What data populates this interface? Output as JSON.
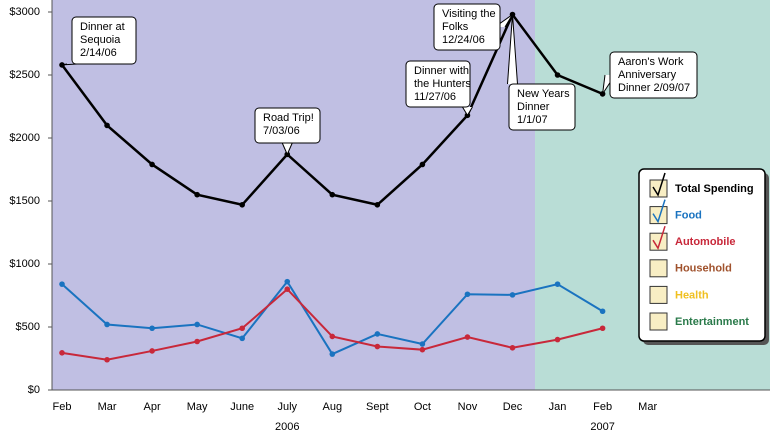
{
  "chart_data": {
    "type": "line",
    "categories": [
      "Feb",
      "Mar",
      "Apr",
      "May",
      "June",
      "July",
      "Aug",
      "Sept",
      "Oct",
      "Nov",
      "Dec",
      "Jan",
      "Feb",
      "Mar"
    ],
    "x_groups": [
      {
        "label": "2006",
        "start": 0,
        "end": 10,
        "color": "#c0bfe3"
      },
      {
        "label": "2007",
        "start": 11,
        "end": 13,
        "color": "#b9ddd6"
      }
    ],
    "ylim": [
      0,
      3000
    ],
    "yticks": [
      {
        "value": 0,
        "label": "$0"
      },
      {
        "value": 500,
        "label": "$500"
      },
      {
        "value": 1000,
        "label": "$1000"
      },
      {
        "value": 1500,
        "label": "$1500"
      },
      {
        "value": 2000,
        "label": "$2000"
      },
      {
        "value": 2500,
        "label": "$2500"
      },
      {
        "value": 3000,
        "label": "$3000"
      }
    ],
    "series": [
      {
        "name": "Total Spending",
        "color": "#000000",
        "checked": true,
        "values": [
          2580,
          2100,
          1790,
          1550,
          1470,
          1870,
          1550,
          1470,
          1790,
          2180,
          2980,
          2500,
          2350,
          null
        ]
      },
      {
        "name": "Food",
        "color": "#1a73c0",
        "checked": true,
        "values": [
          840,
          520,
          490,
          520,
          410,
          860,
          285,
          445,
          365,
          760,
          755,
          840,
          625,
          null
        ]
      },
      {
        "name": "Automobile",
        "color": "#c8283a",
        "checked": true,
        "values": [
          295,
          240,
          310,
          385,
          490,
          800,
          425,
          345,
          320,
          420,
          335,
          400,
          490,
          null
        ]
      },
      {
        "name": "Household",
        "color": "#a0522d",
        "checked": false,
        "values": [
          null,
          null,
          null,
          null,
          null,
          null,
          null,
          null,
          null,
          null,
          null,
          null,
          null,
          null
        ]
      },
      {
        "name": "Health",
        "color": "#f0c020",
        "checked": false,
        "values": [
          null,
          null,
          null,
          null,
          null,
          null,
          null,
          null,
          null,
          null,
          null,
          null,
          null,
          null
        ]
      },
      {
        "name": "Entertainment",
        "color": "#2a7a4a",
        "checked": false,
        "values": [
          null,
          null,
          null,
          null,
          null,
          null,
          null,
          null,
          null,
          null,
          null,
          null,
          null,
          null
        ]
      }
    ],
    "annotations": [
      [
        "Dinner at",
        "Sequoia",
        "2/14/06"
      ],
      [
        "Road Trip!",
        "7/03/06"
      ],
      [
        "Dinner with",
        "the Hunters",
        "11/27/06"
      ],
      [
        "Visiting the",
        "Folks",
        "12/24/06"
      ],
      [
        "New Years",
        "Dinner",
        "1/1/07"
      ],
      [
        "Aaron's Work",
        "Anniversary",
        "Dinner 2/09/07"
      ]
    ]
  }
}
